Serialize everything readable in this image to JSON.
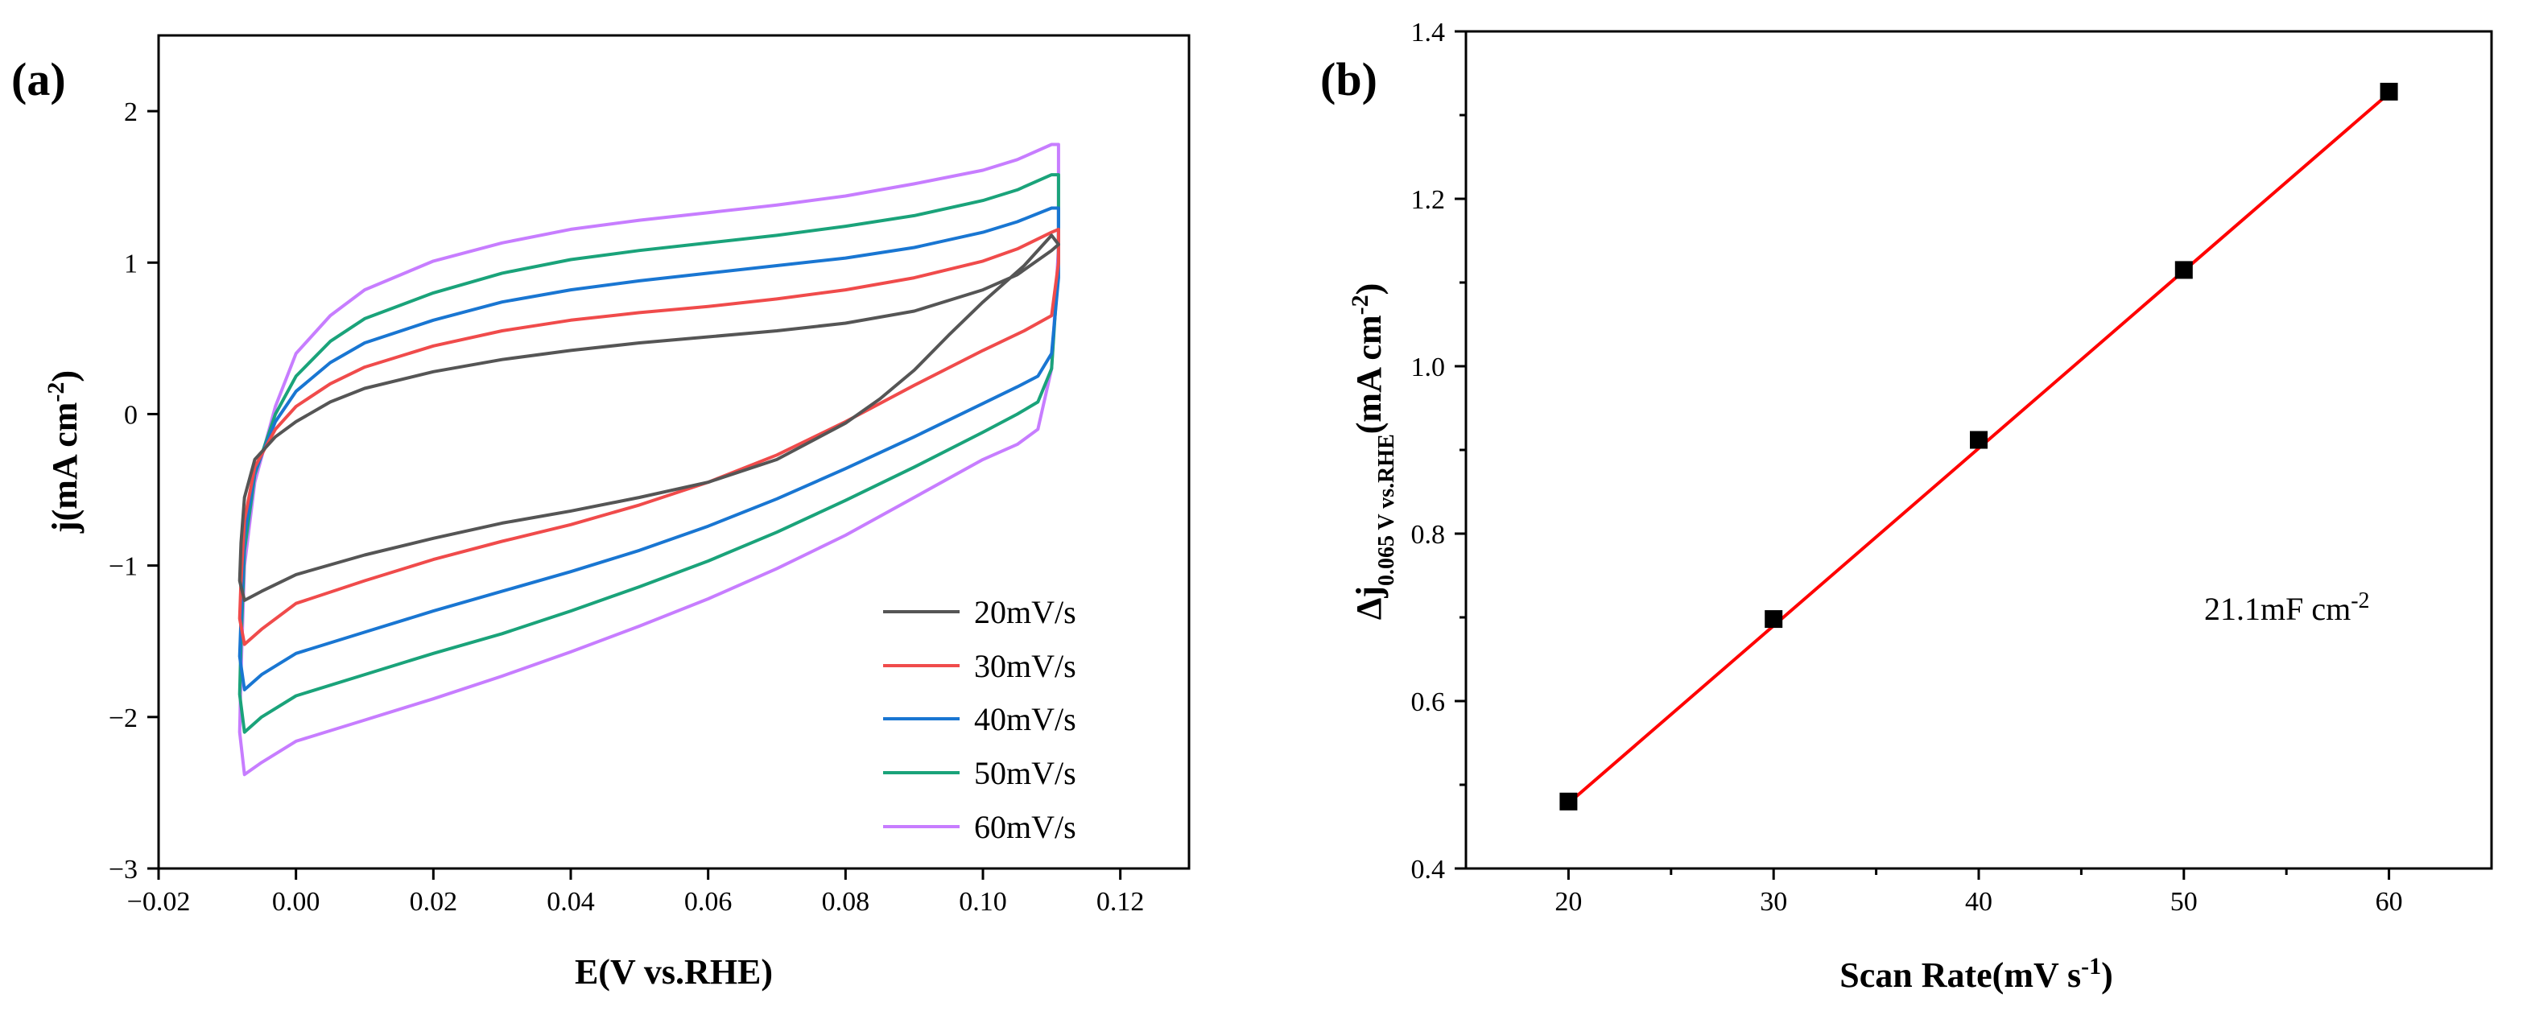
{
  "chart_data": [
    {
      "panel": "(a)",
      "type": "line",
      "title": "",
      "xlabel": "E(V vs.RHE)",
      "ylabel": {
        "main": "j(mA cm",
        "sup": "-2",
        "close": ")"
      },
      "xlim": [
        -0.02,
        0.13
      ],
      "ylim": [
        -3,
        2.5
      ],
      "xticks": [
        -0.02,
        0.0,
        0.02,
        0.04,
        0.06,
        0.08,
        0.1,
        0.12
      ],
      "xtick_labels": [
        "−0.02",
        "0.00",
        "0.02",
        "0.04",
        "0.06",
        "0.08",
        "0.10",
        "0.12"
      ],
      "yticks": [
        -3,
        -2,
        -1,
        0,
        1,
        2
      ],
      "ytick_labels": [
        "−3",
        "−2",
        "−1",
        "0",
        "1",
        "2"
      ],
      "legend_position": "bottom-right",
      "series": [
        {
          "name": "20mV/s",
          "color": "#555555",
          "upper": [
            [
              -0.008,
              -0.85
            ],
            [
              -0.0075,
              -0.55
            ],
            [
              -0.006,
              -0.3
            ],
            [
              -0.003,
              -0.15
            ],
            [
              0.0,
              -0.05
            ],
            [
              0.005,
              0.08
            ],
            [
              0.01,
              0.17
            ],
            [
              0.02,
              0.28
            ],
            [
              0.03,
              0.36
            ],
            [
              0.04,
              0.42
            ],
            [
              0.05,
              0.47
            ],
            [
              0.06,
              0.51
            ],
            [
              0.07,
              0.55
            ],
            [
              0.08,
              0.6
            ],
            [
              0.09,
              0.68
            ],
            [
              0.1,
              0.82
            ],
            [
              0.105,
              0.92
            ],
            [
              0.11,
              1.08
            ]
          ],
          "lower": [
            [
              0.111,
              1.12
            ],
            [
              0.11,
              1.18
            ],
            [
              0.106,
              0.98
            ],
            [
              0.1,
              0.74
            ],
            [
              0.095,
              0.52
            ],
            [
              0.09,
              0.29
            ],
            [
              0.085,
              0.1
            ],
            [
              0.08,
              -0.06
            ],
            [
              0.07,
              -0.3
            ],
            [
              0.06,
              -0.45
            ],
            [
              0.05,
              -0.55
            ],
            [
              0.04,
              -0.64
            ],
            [
              0.03,
              -0.72
            ],
            [
              0.02,
              -0.82
            ],
            [
              0.01,
              -0.93
            ],
            [
              0.0,
              -1.06
            ],
            [
              -0.005,
              -1.17
            ],
            [
              -0.0075,
              -1.23
            ],
            [
              -0.0082,
              -1.1
            ],
            [
              -0.008,
              -0.85
            ]
          ]
        },
        {
          "name": "30mV/s",
          "color": "#f04b4b",
          "upper": [
            [
              -0.008,
              -1.1
            ],
            [
              -0.0075,
              -0.7
            ],
            [
              -0.006,
              -0.35
            ],
            [
              -0.003,
              -0.1
            ],
            [
              0.0,
              0.05
            ],
            [
              0.005,
              0.2
            ],
            [
              0.01,
              0.31
            ],
            [
              0.02,
              0.45
            ],
            [
              0.03,
              0.55
            ],
            [
              0.04,
              0.62
            ],
            [
              0.05,
              0.67
            ],
            [
              0.06,
              0.71
            ],
            [
              0.07,
              0.76
            ],
            [
              0.08,
              0.82
            ],
            [
              0.09,
              0.9
            ],
            [
              0.1,
              1.01
            ],
            [
              0.105,
              1.09
            ],
            [
              0.11,
              1.2
            ]
          ],
          "lower": [
            [
              0.111,
              1.22
            ],
            [
              0.111,
              1.0
            ],
            [
              0.11,
              0.65
            ],
            [
              0.106,
              0.55
            ],
            [
              0.1,
              0.42
            ],
            [
              0.09,
              0.19
            ],
            [
              0.08,
              -0.05
            ],
            [
              0.07,
              -0.27
            ],
            [
              0.06,
              -0.45
            ],
            [
              0.05,
              -0.6
            ],
            [
              0.04,
              -0.73
            ],
            [
              0.03,
              -0.84
            ],
            [
              0.02,
              -0.96
            ],
            [
              0.01,
              -1.1
            ],
            [
              0.0,
              -1.25
            ],
            [
              -0.005,
              -1.42
            ],
            [
              -0.0075,
              -1.52
            ],
            [
              -0.0082,
              -1.35
            ],
            [
              -0.008,
              -1.1
            ]
          ]
        },
        {
          "name": "40mV/s",
          "color": "#1976d2",
          "upper": [
            [
              -0.008,
              -1.35
            ],
            [
              -0.0075,
              -0.8
            ],
            [
              -0.006,
              -0.38
            ],
            [
              -0.003,
              -0.05
            ],
            [
              0.0,
              0.15
            ],
            [
              0.005,
              0.34
            ],
            [
              0.01,
              0.47
            ],
            [
              0.02,
              0.62
            ],
            [
              0.03,
              0.74
            ],
            [
              0.04,
              0.82
            ],
            [
              0.05,
              0.88
            ],
            [
              0.06,
              0.93
            ],
            [
              0.07,
              0.98
            ],
            [
              0.08,
              1.03
            ],
            [
              0.09,
              1.1
            ],
            [
              0.1,
              1.2
            ],
            [
              0.105,
              1.27
            ],
            [
              0.11,
              1.36
            ]
          ],
          "lower": [
            [
              0.111,
              1.36
            ],
            [
              0.111,
              0.9
            ],
            [
              0.11,
              0.4
            ],
            [
              0.108,
              0.25
            ],
            [
              0.105,
              0.18
            ],
            [
              0.1,
              0.07
            ],
            [
              0.09,
              -0.15
            ],
            [
              0.08,
              -0.36
            ],
            [
              0.07,
              -0.56
            ],
            [
              0.06,
              -0.74
            ],
            [
              0.05,
              -0.9
            ],
            [
              0.04,
              -1.04
            ],
            [
              0.03,
              -1.17
            ],
            [
              0.02,
              -1.3
            ],
            [
              0.01,
              -1.44
            ],
            [
              0.0,
              -1.58
            ],
            [
              -0.005,
              -1.72
            ],
            [
              -0.0075,
              -1.82
            ],
            [
              -0.0082,
              -1.6
            ],
            [
              -0.008,
              -1.35
            ]
          ]
        },
        {
          "name": "50mV/s",
          "color": "#1aa37a",
          "upper": [
            [
              -0.008,
              -1.5
            ],
            [
              -0.0075,
              -0.9
            ],
            [
              -0.006,
              -0.4
            ],
            [
              -0.003,
              0.0
            ],
            [
              0.0,
              0.25
            ],
            [
              0.005,
              0.48
            ],
            [
              0.01,
              0.63
            ],
            [
              0.02,
              0.8
            ],
            [
              0.03,
              0.93
            ],
            [
              0.04,
              1.02
            ],
            [
              0.05,
              1.08
            ],
            [
              0.06,
              1.13
            ],
            [
              0.07,
              1.18
            ],
            [
              0.08,
              1.24
            ],
            [
              0.09,
              1.31
            ],
            [
              0.1,
              1.41
            ],
            [
              0.105,
              1.48
            ],
            [
              0.11,
              1.58
            ]
          ],
          "lower": [
            [
              0.111,
              1.58
            ],
            [
              0.111,
              1.0
            ],
            [
              0.11,
              0.3
            ],
            [
              0.108,
              0.08
            ],
            [
              0.105,
              0.0
            ],
            [
              0.1,
              -0.12
            ],
            [
              0.09,
              -0.35
            ],
            [
              0.08,
              -0.57
            ],
            [
              0.07,
              -0.78
            ],
            [
              0.06,
              -0.97
            ],
            [
              0.05,
              -1.14
            ],
            [
              0.04,
              -1.3
            ],
            [
              0.03,
              -1.45
            ],
            [
              0.02,
              -1.58
            ],
            [
              0.01,
              -1.72
            ],
            [
              0.0,
              -1.86
            ],
            [
              -0.005,
              -2.0
            ],
            [
              -0.0075,
              -2.1
            ],
            [
              -0.0082,
              -1.85
            ],
            [
              -0.008,
              -1.5
            ]
          ]
        },
        {
          "name": "60mV/s",
          "color": "#c77dff",
          "upper": [
            [
              -0.008,
              -1.7
            ],
            [
              -0.0075,
              -1.0
            ],
            [
              -0.006,
              -0.45
            ],
            [
              -0.003,
              0.05
            ],
            [
              0.0,
              0.4
            ],
            [
              0.005,
              0.65
            ],
            [
              0.01,
              0.82
            ],
            [
              0.02,
              1.01
            ],
            [
              0.03,
              1.13
            ],
            [
              0.04,
              1.22
            ],
            [
              0.05,
              1.28
            ],
            [
              0.06,
              1.33
            ],
            [
              0.07,
              1.38
            ],
            [
              0.08,
              1.44
            ],
            [
              0.09,
              1.52
            ],
            [
              0.1,
              1.61
            ],
            [
              0.105,
              1.68
            ],
            [
              0.11,
              1.78
            ]
          ],
          "lower": [
            [
              0.111,
              1.78
            ],
            [
              0.111,
              1.1
            ],
            [
              0.11,
              0.3
            ],
            [
              0.108,
              -0.1
            ],
            [
              0.105,
              -0.2
            ],
            [
              0.1,
              -0.3
            ],
            [
              0.09,
              -0.55
            ],
            [
              0.08,
              -0.8
            ],
            [
              0.07,
              -1.02
            ],
            [
              0.06,
              -1.22
            ],
            [
              0.05,
              -1.4
            ],
            [
              0.04,
              -1.57
            ],
            [
              0.03,
              -1.73
            ],
            [
              0.02,
              -1.88
            ],
            [
              0.01,
              -2.02
            ],
            [
              0.0,
              -2.16
            ],
            [
              -0.005,
              -2.3
            ],
            [
              -0.0075,
              -2.38
            ],
            [
              -0.0082,
              -2.1
            ],
            [
              -0.008,
              -1.7
            ]
          ]
        }
      ]
    },
    {
      "panel": "(b)",
      "type": "scatter",
      "title": "",
      "xlabel": {
        "main": "Scan Rate(mV s",
        "sup": "-1",
        "close": ")"
      },
      "ylabel": {
        "delta": "Δj",
        "sub": "0.065 V vs.RHE",
        "main": "(mA cm",
        "sup": "-2",
        "close": ")"
      },
      "xlim": [
        15,
        65
      ],
      "ylim": [
        0.4,
        1.4
      ],
      "xticks": [
        20,
        30,
        40,
        50,
        60
      ],
      "xtick_labels": [
        "20",
        "30",
        "40",
        "50",
        "60"
      ],
      "yticks": [
        0.4,
        0.6,
        0.8,
        1.0,
        1.2,
        1.4
      ],
      "ytick_labels": [
        "0.4",
        "0.6",
        "0.8",
        "1.0",
        "1.2",
        "1.4"
      ],
      "x": [
        20,
        30,
        40,
        50,
        60
      ],
      "y": [
        0.48,
        0.698,
        0.912,
        1.115,
        1.328
      ],
      "fit": {
        "x": [
          20,
          60
        ],
        "y": [
          0.478,
          1.326
        ],
        "color": "#ff0000"
      },
      "marker_color": "#000000",
      "annotation": {
        "main": "21.1mF cm",
        "sup": "-2"
      }
    }
  ]
}
